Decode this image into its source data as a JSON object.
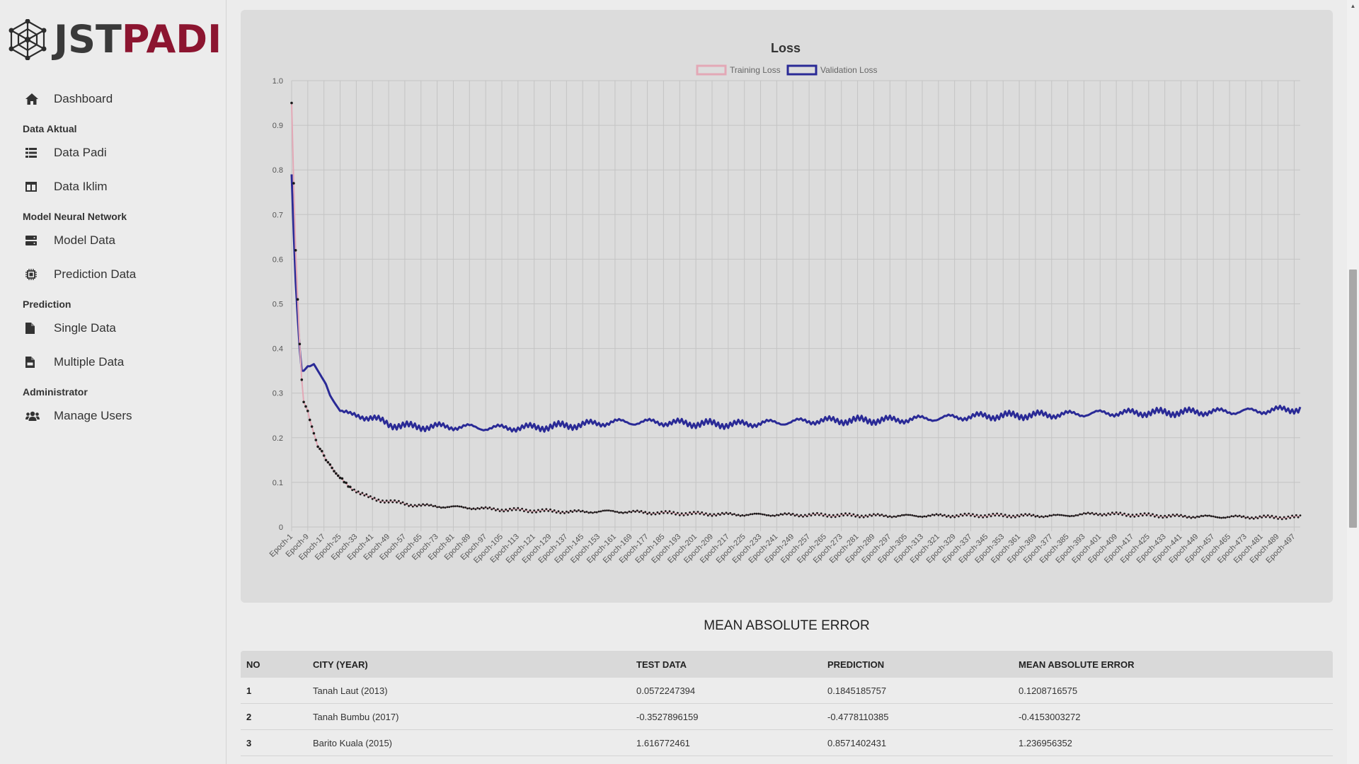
{
  "brand": {
    "part1": "JST",
    "part2": "PADI"
  },
  "nav": {
    "dashboard": "Dashboard",
    "section_data_aktual": "Data Aktual",
    "data_padi": "Data Padi",
    "data_iklim": "Data Iklim",
    "section_model": "Model Neural Network",
    "model_data": "Model Data",
    "prediction_data": "Prediction Data",
    "section_prediction": "Prediction",
    "single_data": "Single Data",
    "multiple_data": "Multiple Data",
    "section_admin": "Administrator",
    "manage_users": "Manage Users"
  },
  "icons": {
    "dashboard": "home-icon",
    "data_padi": "table-icon",
    "data_iklim": "columns-icon",
    "model_data": "server-icon",
    "prediction_data": "cpu-icon",
    "single_data": "file-icon",
    "multiple_data": "csv-file-icon",
    "manage_users": "users-icon"
  },
  "colors": {
    "brand_dark": "#3a3a3a",
    "brand_accent": "#8c1530",
    "training": "#e3a8b6",
    "validation": "#2a2a96"
  },
  "chart_data": {
    "type": "line",
    "title": "Loss",
    "legend_position": "top",
    "grid": true,
    "ylim": [
      0,
      1.0
    ],
    "y_ticks": [
      "1.0",
      "0.9",
      "0.8",
      "0.7",
      "0.6",
      "0.5",
      "0.4",
      "0.3",
      "0.2",
      "0.1",
      "0"
    ],
    "x_range": [
      "Epoch-1",
      "Epoch-500"
    ],
    "x_tick_labels": [
      "Epoch-1",
      "Epoch-9",
      "Epoch-17",
      "Epoch-25",
      "Epoch-33",
      "Epoch-41",
      "Epoch-49",
      "Epoch-57",
      "Epoch-65",
      "Epoch-73",
      "Epoch-81",
      "Epoch-89",
      "Epoch-97",
      "Epoch-105",
      "Epoch-113",
      "Epoch-121",
      "Epoch-129",
      "Epoch-137",
      "Epoch-145",
      "Epoch-153",
      "Epoch-161",
      "Epoch-169",
      "Epoch-177",
      "Epoch-185",
      "Epoch-193",
      "Epoch-201",
      "Epoch-209",
      "Epoch-217",
      "Epoch-225",
      "Epoch-233",
      "Epoch-241",
      "Epoch-249",
      "Epoch-257",
      "Epoch-265",
      "Epoch-273",
      "Epoch-281",
      "Epoch-289",
      "Epoch-297",
      "Epoch-305",
      "Epoch-313",
      "Epoch-321",
      "Epoch-329",
      "Epoch-337",
      "Epoch-345",
      "Epoch-353",
      "Epoch-361",
      "Epoch-369",
      "Epoch-377",
      "Epoch-385",
      "Epoch-393",
      "Epoch-401",
      "Epoch-409",
      "Epoch-417",
      "Epoch-425",
      "Epoch-433",
      "Epoch-441",
      "Epoch-449",
      "Epoch-457",
      "Epoch-465",
      "Epoch-473",
      "Epoch-481",
      "Epoch-489",
      "Epoch-497"
    ],
    "series": [
      {
        "name": "Training Loss",
        "color": "#e3a8b6",
        "approx_points": [
          [
            1,
            0.95
          ],
          [
            2,
            0.77
          ],
          [
            3,
            0.62
          ],
          [
            4,
            0.51
          ],
          [
            5,
            0.41
          ],
          [
            6,
            0.33
          ],
          [
            7,
            0.28
          ],
          [
            8,
            0.27
          ],
          [
            9,
            0.26
          ],
          [
            10,
            0.24
          ],
          [
            12,
            0.21
          ],
          [
            14,
            0.18
          ],
          [
            16,
            0.17
          ],
          [
            18,
            0.15
          ],
          [
            20,
            0.14
          ],
          [
            22,
            0.125
          ],
          [
            25,
            0.11
          ],
          [
            30,
            0.09
          ],
          [
            35,
            0.075
          ],
          [
            40,
            0.065
          ],
          [
            45,
            0.06
          ],
          [
            50,
            0.057
          ],
          [
            60,
            0.05
          ],
          [
            70,
            0.047
          ],
          [
            80,
            0.045
          ],
          [
            90,
            0.043
          ],
          [
            100,
            0.04
          ],
          [
            120,
            0.037
          ],
          [
            140,
            0.034
          ],
          [
            160,
            0.035
          ],
          [
            180,
            0.032
          ],
          [
            200,
            0.03
          ],
          [
            220,
            0.028
          ],
          [
            260,
            0.027
          ],
          [
            300,
            0.025
          ],
          [
            340,
            0.026
          ],
          [
            380,
            0.025
          ],
          [
            400,
            0.03
          ],
          [
            440,
            0.024
          ],
          [
            480,
            0.022
          ],
          [
            500,
            0.022
          ]
        ]
      },
      {
        "name": "Validation Loss",
        "color": "#2a2a96",
        "approx_points": [
          [
            1,
            0.79
          ],
          [
            2,
            0.66
          ],
          [
            3,
            0.55
          ],
          [
            4,
            0.47
          ],
          [
            5,
            0.4
          ],
          [
            6,
            0.35
          ],
          [
            7,
            0.35
          ],
          [
            8,
            0.355
          ],
          [
            9,
            0.36
          ],
          [
            10,
            0.36
          ],
          [
            12,
            0.365
          ],
          [
            14,
            0.35
          ],
          [
            16,
            0.335
          ],
          [
            18,
            0.32
          ],
          [
            20,
            0.295
          ],
          [
            22,
            0.28
          ],
          [
            25,
            0.26
          ],
          [
            30,
            0.25
          ],
          [
            35,
            0.25
          ],
          [
            40,
            0.245
          ],
          [
            50,
            0.23
          ],
          [
            60,
            0.225
          ],
          [
            80,
            0.225
          ],
          [
            100,
            0.222
          ],
          [
            120,
            0.223
          ],
          [
            140,
            0.228
          ],
          [
            160,
            0.235
          ],
          [
            180,
            0.235
          ],
          [
            200,
            0.232
          ],
          [
            220,
            0.23
          ],
          [
            260,
            0.238
          ],
          [
            300,
            0.24
          ],
          [
            340,
            0.248
          ],
          [
            380,
            0.252
          ],
          [
            400,
            0.255
          ],
          [
            440,
            0.257
          ],
          [
            480,
            0.26
          ],
          [
            500,
            0.265
          ]
        ]
      }
    ]
  },
  "mae": {
    "title": "MEAN ABSOLUTE ERROR",
    "headers": {
      "no": "NO",
      "city": "CITY (YEAR)",
      "test": "TEST DATA",
      "pred": "PREDICTION",
      "mae": "MEAN ABSOLUTE ERROR"
    },
    "rows": [
      {
        "no": "1",
        "city": "Tanah Laut (2013)",
        "test": "0.0572247394",
        "pred": "0.1845185757",
        "mae": "0.1208716575"
      },
      {
        "no": "2",
        "city": "Tanah Bumbu (2017)",
        "test": "-0.3527896159",
        "pred": "-0.4778110385",
        "mae": "-0.4153003272"
      },
      {
        "no": "3",
        "city": "Barito Kuala (2015)",
        "test": "1.616772461",
        "pred": "0.8571402431",
        "mae": "1.236956352"
      }
    ]
  }
}
